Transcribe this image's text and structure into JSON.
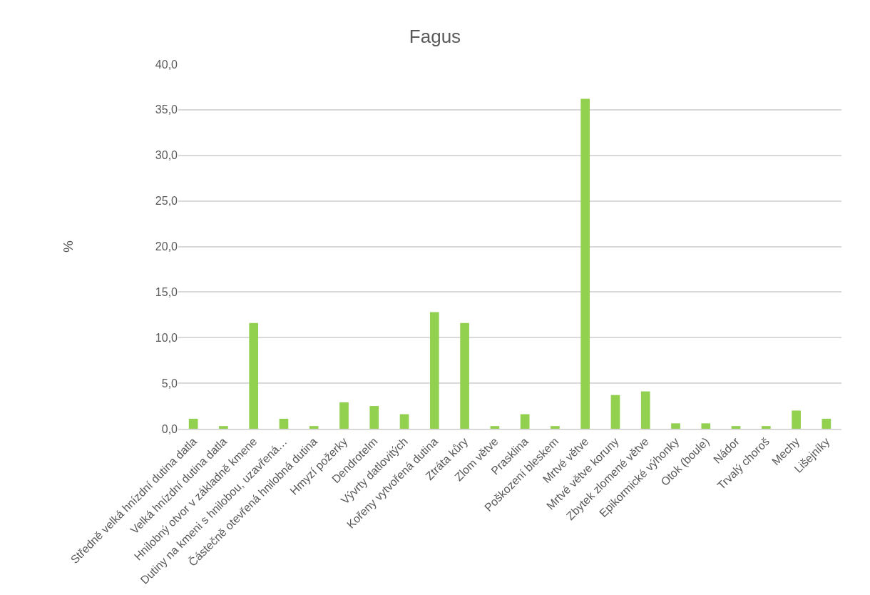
{
  "chart_data": {
    "type": "bar",
    "title": "Fagus",
    "ylabel": "%",
    "categories": [
      "Středně velká hnízdní dutina datla",
      "Velká hnízdní dutina datla",
      "Hnilobný otvor v základně kmene",
      "Dutiny na kmeni s hnilobou, uzavřená…",
      "Částečně otevřená hnilobná dutina",
      "Hmyzí požerky",
      "Dendrotelm",
      "Vývrty datlovitých",
      "Kořeny vytvořená dutina",
      "Ztráta kůry",
      "Zlom větve",
      "Prasklina",
      "Poškození bleskem",
      "Mrtvé větve",
      "Mrtvé větve koruny",
      "Zbytek zlomené větve",
      "Epikormické výhonky",
      "Otok (boule)",
      "Nádor",
      "Trvalý choroš",
      "Mechy",
      "Lišejníky"
    ],
    "values": [
      1.1,
      0.3,
      11.6,
      1.1,
      0.3,
      2.9,
      2.5,
      1.6,
      12.8,
      11.6,
      0.3,
      1.6,
      0.3,
      36.2,
      3.7,
      4.1,
      0.6,
      0.6,
      0.3,
      0.3,
      2.0,
      1.1
    ],
    "color": "#92d050",
    "ylim": [
      0,
      40
    ],
    "yticks": [
      {
        "value": 0,
        "label": "0,0"
      },
      {
        "value": 5,
        "label": "5,0"
      },
      {
        "value": 10,
        "label": "10,0"
      },
      {
        "value": 15,
        "label": "15,0"
      },
      {
        "value": 20,
        "label": "20,0"
      },
      {
        "value": 25,
        "label": "25,0"
      },
      {
        "value": 30,
        "label": "30,0"
      },
      {
        "value": 35,
        "label": "35,0"
      },
      {
        "value": 40,
        "label": "40,0"
      }
    ],
    "grid": "y"
  }
}
